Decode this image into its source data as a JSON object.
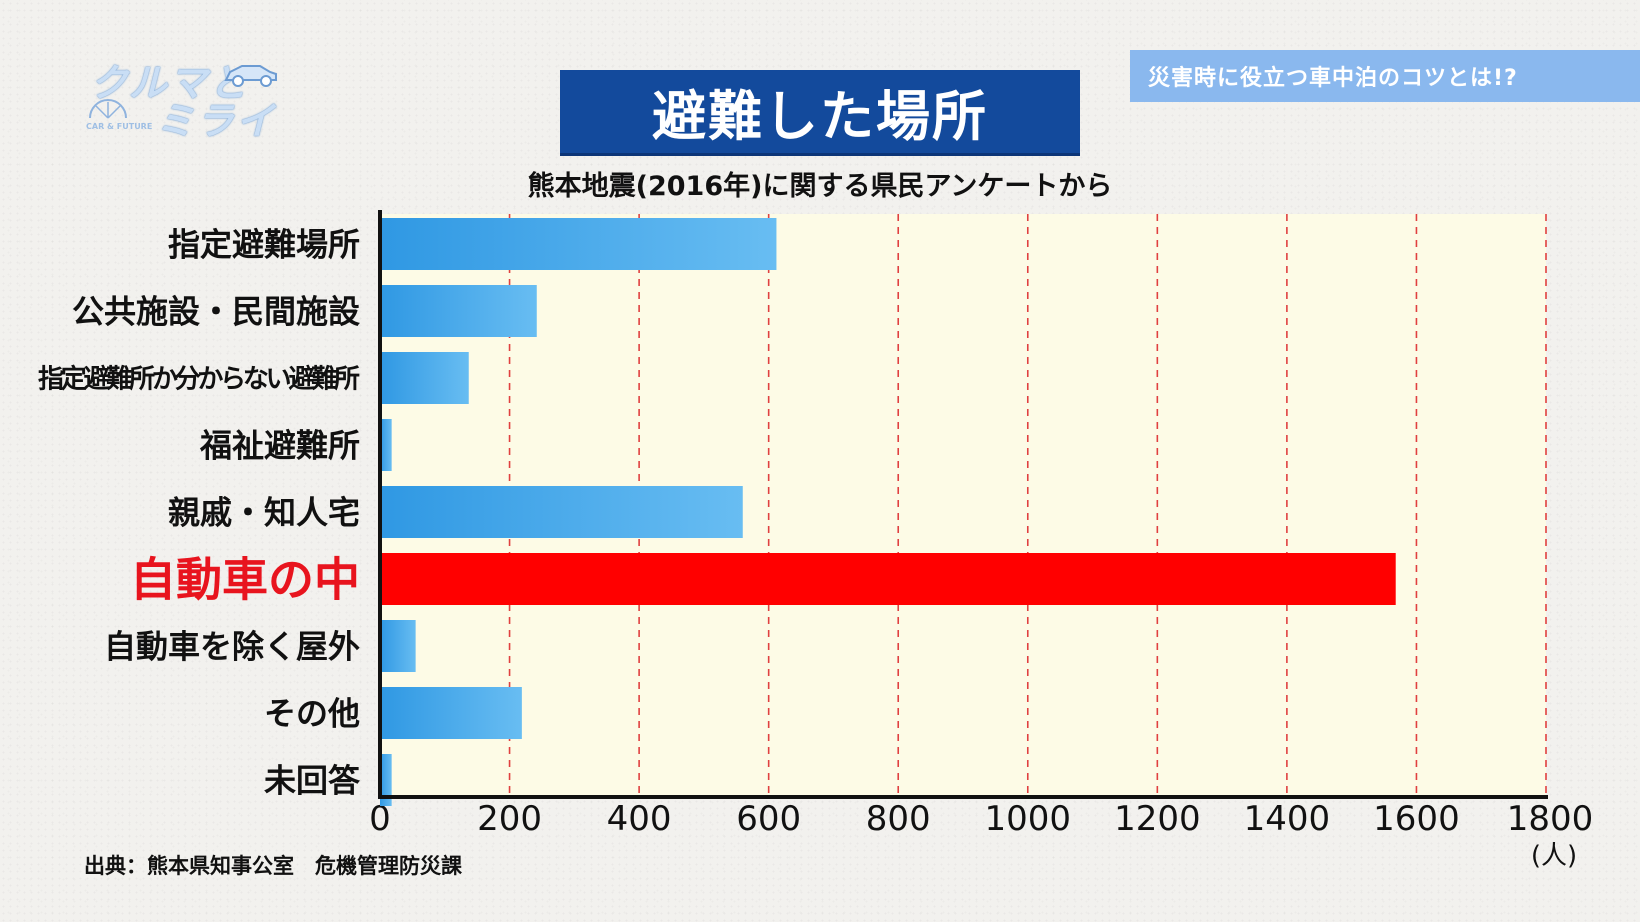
{
  "logo": {
    "line1": "クルマと",
    "line2": "ミライ",
    "small": "CAR & FUTURE"
  },
  "topic_banner": "災害時に役立つ車中泊のコツとは!?",
  "source_note": "出典：熊本県知事公室　危機管理防災課",
  "colors": {
    "bar_gradient_start": "#2f98e3",
    "bar_gradient_end": "#68bdf2",
    "highlight_bar": "#ff0000",
    "highlight_label": "#e8141e",
    "plot_background": "#fdfbe6",
    "gridline": "#e04040",
    "title_background": "#134a9c",
    "banner_background": "#8ab8ee"
  },
  "chart_data": {
    "type": "bar",
    "orientation": "horizontal",
    "title": "避難した場所",
    "subtitle": "熊本地震(2016年)に関する県民アンケートから",
    "categories": [
      "指定避難場所",
      "公共施設・民間施設",
      "指定避難所か分からない避難所",
      "福祉避難所",
      "親戚・知人宅",
      "自動車の中",
      "自動車を除く屋外",
      "その他",
      "未回答"
    ],
    "values": [
      612,
      242,
      137,
      18,
      560,
      1568,
      55,
      219,
      18
    ],
    "highlight_index": 5,
    "xlim": [
      0,
      1800
    ],
    "xticks": [
      "0",
      "200",
      "400",
      "600",
      "800",
      "1000",
      "1200",
      "1400",
      "1600",
      "1800"
    ],
    "xunit": "(人)",
    "grid": "vertical dashed"
  }
}
